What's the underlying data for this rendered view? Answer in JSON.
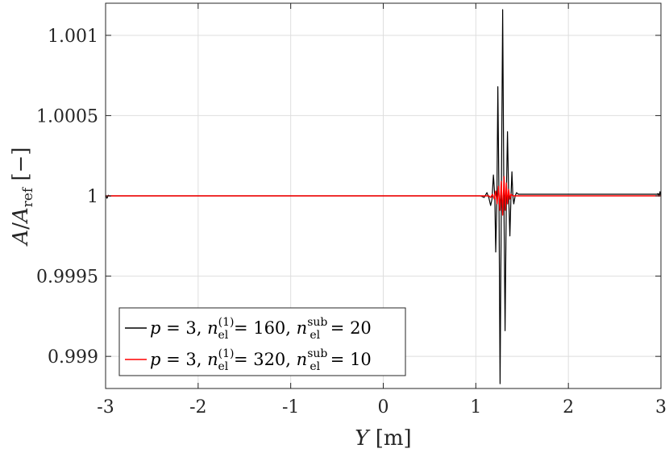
{
  "chart_data": {
    "type": "line",
    "title": "",
    "xlabel": "Y [m]",
    "ylabel": "A/A_ref [−]",
    "xlim": [
      -3,
      3
    ],
    "ylim": [
      0.9988,
      1.0012
    ],
    "x_ticks": [
      -3,
      -2,
      -1,
      0,
      1,
      2,
      3
    ],
    "x_tick_labels": [
      "-3",
      "-2",
      "-1",
      "0",
      "1",
      "2",
      "3"
    ],
    "y_ticks": [
      0.999,
      0.9995,
      1,
      1.0005,
      1.001
    ],
    "y_tick_labels": [
      "0.999",
      "0.9995",
      "1",
      "1.0005",
      "1.001"
    ],
    "grid": true,
    "legend_position": "bottom-left",
    "series": [
      {
        "name": "p = 3, n_el^(1) = 160, n_el^sub = 20",
        "color": "#000000",
        "baseline": 1.0,
        "baseline_right": 1.00001,
        "points": [
          [
            1.0,
            1.0
          ],
          [
            1.05,
            1.0
          ],
          [
            1.09,
            0.99999
          ],
          [
            1.12,
            1.00002
          ],
          [
            1.14,
            0.99999
          ],
          [
            1.16,
            0.99994
          ],
          [
            1.175,
            0.99998
          ],
          [
            1.19,
            1.00013
          ],
          [
            1.205,
            1.0
          ],
          [
            1.215,
            0.99965
          ],
          [
            1.228,
            1.0
          ],
          [
            1.238,
            1.00068
          ],
          [
            1.25,
            1.0
          ],
          [
            1.262,
            0.99883
          ],
          [
            1.276,
            1.0
          ],
          [
            1.29,
            1.00116
          ],
          [
            1.303,
            1.0
          ],
          [
            1.316,
            0.99916
          ],
          [
            1.33,
            1.0
          ],
          [
            1.342,
            1.0004
          ],
          [
            1.355,
            1.0
          ],
          [
            1.368,
            0.99975
          ],
          [
            1.38,
            1.0
          ],
          [
            1.39,
            1.00015
          ],
          [
            1.4,
            1.0
          ],
          [
            1.41,
            0.99995
          ],
          [
            1.425,
            1.0
          ],
          [
            1.44,
            1.00002
          ],
          [
            1.46,
            1.00001
          ],
          [
            3.0,
            1.00001
          ]
        ],
        "edge_wiggle": true
      },
      {
        "name": "p = 3, n_el^(1) = 320, n_el^sub = 10",
        "color": "#ff0000",
        "baseline": 1.0,
        "points": [
          [
            1.0,
            1.0
          ],
          [
            1.14,
            1.0
          ],
          [
            1.16,
            0.99999
          ],
          [
            1.18,
            1.00001
          ],
          [
            1.2,
            0.99998
          ],
          [
            1.215,
            1.00003
          ],
          [
            1.23,
            0.99995
          ],
          [
            1.245,
            1.00006
          ],
          [
            1.26,
            0.99991
          ],
          [
            1.275,
            1.00009
          ],
          [
            1.29,
            0.99988
          ],
          [
            1.305,
            1.00012
          ],
          [
            1.318,
            0.99991
          ],
          [
            1.33,
            1.00008
          ],
          [
            1.342,
            0.99995
          ],
          [
            1.355,
            1.00004
          ],
          [
            1.368,
            0.99998
          ],
          [
            1.38,
            1.00001
          ],
          [
            1.4,
            1.0
          ],
          [
            3.0,
            1.0
          ]
        ],
        "edge_wiggle": false
      }
    ],
    "legend": [
      {
        "p": "p",
        "eq1": " = 3, ",
        "n": "n",
        "sub": "el",
        "sup": "(1)",
        "eq2": " = 160, ",
        "n2": "n",
        "sub2": "el",
        "sup2": "sub",
        "eq3": " = 20"
      },
      {
        "p": "p",
        "eq1": " = 3, ",
        "n": "n",
        "sub": "el",
        "sup": "(1)",
        "eq2": " = 320, ",
        "n2": "n",
        "sub2": "el",
        "sup2": "sub",
        "eq3": " = 10"
      }
    ],
    "ylabel_parts": {
      "a": "A",
      "slash": "/",
      "aref": "A",
      "ref": "ref",
      "unit": " [−]"
    },
    "xlabel_parts": {
      "y": "Y",
      "unit": " [m]"
    }
  }
}
